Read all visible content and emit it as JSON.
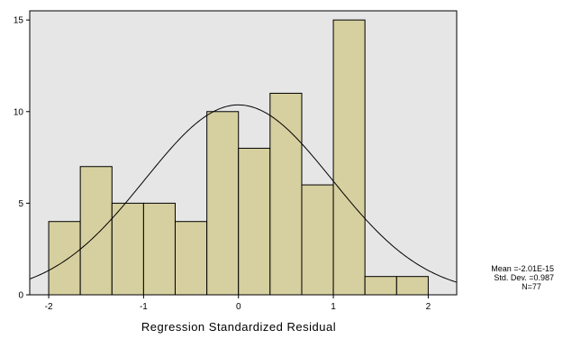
{
  "chart_data": {
    "type": "histogram",
    "title": "",
    "xlabel": "Regression Standardized Residual",
    "ylabel": "",
    "xlim": [
      -2.2,
      2.3
    ],
    "ylim": [
      0,
      15.5
    ],
    "x_ticks": [
      -2,
      -1,
      0,
      1,
      2
    ],
    "x_tick_labels": [
      "-2",
      "-1",
      "0",
      "1",
      "2"
    ],
    "y_ticks": [
      0,
      5,
      10,
      15
    ],
    "y_tick_labels": [
      "0",
      "5",
      "10",
      "15"
    ],
    "bin_width": 0.333,
    "bins": [
      {
        "start": -2.0,
        "end": -1.667,
        "count": 4
      },
      {
        "start": -1.667,
        "end": -1.333,
        "count": 7
      },
      {
        "start": -1.333,
        "end": -1.0,
        "count": 5
      },
      {
        "start": -1.0,
        "end": -0.667,
        "count": 5
      },
      {
        "start": -0.667,
        "end": -0.333,
        "count": 4
      },
      {
        "start": -0.333,
        "end": 0.0,
        "count": 10
      },
      {
        "start": 0.0,
        "end": 0.333,
        "count": 8
      },
      {
        "start": 0.333,
        "end": 0.667,
        "count": 11
      },
      {
        "start": 0.667,
        "end": 1.0,
        "count": 6
      },
      {
        "start": 1.0,
        "end": 1.333,
        "count": 15
      },
      {
        "start": 1.333,
        "end": 1.667,
        "count": 1
      },
      {
        "start": 1.667,
        "end": 2.0,
        "count": 1
      }
    ],
    "normal_curve": {
      "mean": 0.0,
      "std_dev": 0.987,
      "n": 77
    },
    "stats": {
      "mean_label": "Mean =-2.01E-15",
      "std_label": "Std. Dev. =0.987",
      "n_label": "N=77"
    },
    "grid": false,
    "colors": {
      "bar_fill": "#d6cf9f",
      "bar_stroke": "#000000",
      "plot_background": "#e6e6e6",
      "curve": "#000000"
    }
  }
}
